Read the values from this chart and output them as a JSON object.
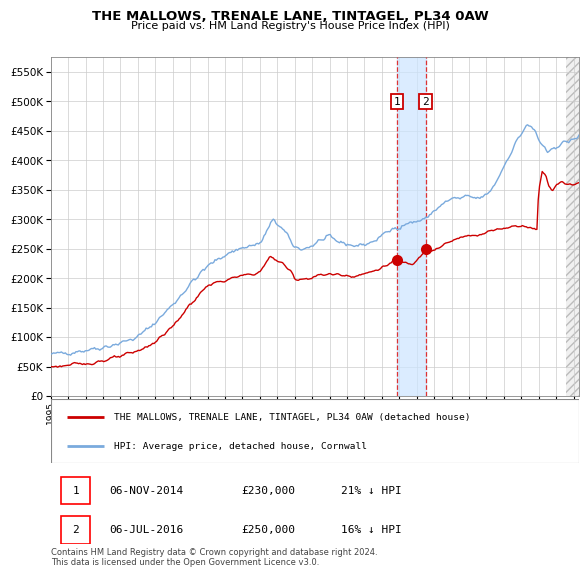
{
  "title": "THE MALLOWS, TRENALE LANE, TINTAGEL, PL34 0AW",
  "subtitle": "Price paid vs. HM Land Registry's House Price Index (HPI)",
  "red_label": "THE MALLOWS, TRENALE LANE, TINTAGEL, PL34 0AW (detached house)",
  "blue_label": "HPI: Average price, detached house, Cornwall",
  "transaction1": {
    "label": "1",
    "date": "06-NOV-2014",
    "price": "£230,000",
    "pct": "21% ↓ HPI",
    "year": 2014.85
  },
  "transaction2": {
    "label": "2",
    "date": "06-JUL-2016",
    "price": "£250,000",
    "pct": "16% ↓ HPI",
    "year": 2016.51
  },
  "footer": "Contains HM Land Registry data © Crown copyright and database right 2024.\nThis data is licensed under the Open Government Licence v3.0.",
  "ylim": [
    0,
    575000
  ],
  "xlim_start": 1995.0,
  "xlim_end": 2025.3,
  "grid_color": "#cccccc",
  "red_color": "#cc0000",
  "blue_color": "#7aaadd",
  "chart_bg": "#ffffff",
  "fig_bg": "#ffffff"
}
